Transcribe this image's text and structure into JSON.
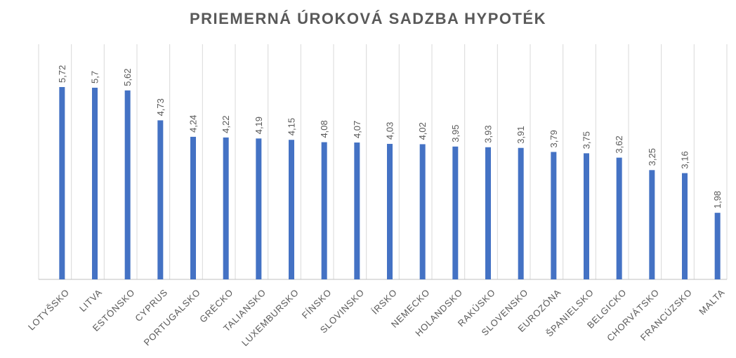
{
  "chart_data": {
    "type": "bar",
    "title": "PRIEMERNÁ ÚROKOVÁ SADZBA HYPOTÉK",
    "xlabel": "",
    "ylabel": "",
    "grid": "vertical",
    "legend": "none",
    "bar_color": "#4472C4",
    "categories": [
      "LOTYŠSKO",
      "LITVA",
      "ESTÓNSKO",
      "CYPRUS",
      "PORTUGALSKO",
      "GRÉCKO",
      "TALIANSKO",
      "LUXEMBURSKO",
      "FÍNSKO",
      "SLOVINSKO",
      "ÍRSKO",
      "NEMECKO",
      "HOLANDSKO",
      "RAKÚSKO",
      "SLOVENSKO",
      "EUROZÓNA",
      "ŠPANIELSKO",
      "BELGICKO",
      "CHORVÁTSKO",
      "FRANCÚZSKO",
      "MALTA"
    ],
    "values": [
      5.72,
      5.7,
      5.62,
      4.73,
      4.24,
      4.22,
      4.19,
      4.15,
      4.08,
      4.07,
      4.03,
      4.02,
      3.95,
      3.93,
      3.91,
      3.79,
      3.75,
      3.62,
      3.25,
      3.16,
      1.98
    ],
    "data_labels": [
      "5,72",
      "5,7",
      "5,62",
      "4,73",
      "4,24",
      "4,22",
      "4,19",
      "4,15",
      "4,08",
      "4,07",
      "4,03",
      "4,02",
      "3,95",
      "3,93",
      "3,91",
      "3,79",
      "3,75",
      "3,62",
      "3,25",
      "3,16",
      "1,98"
    ],
    "ylim": [
      0,
      7
    ]
  }
}
